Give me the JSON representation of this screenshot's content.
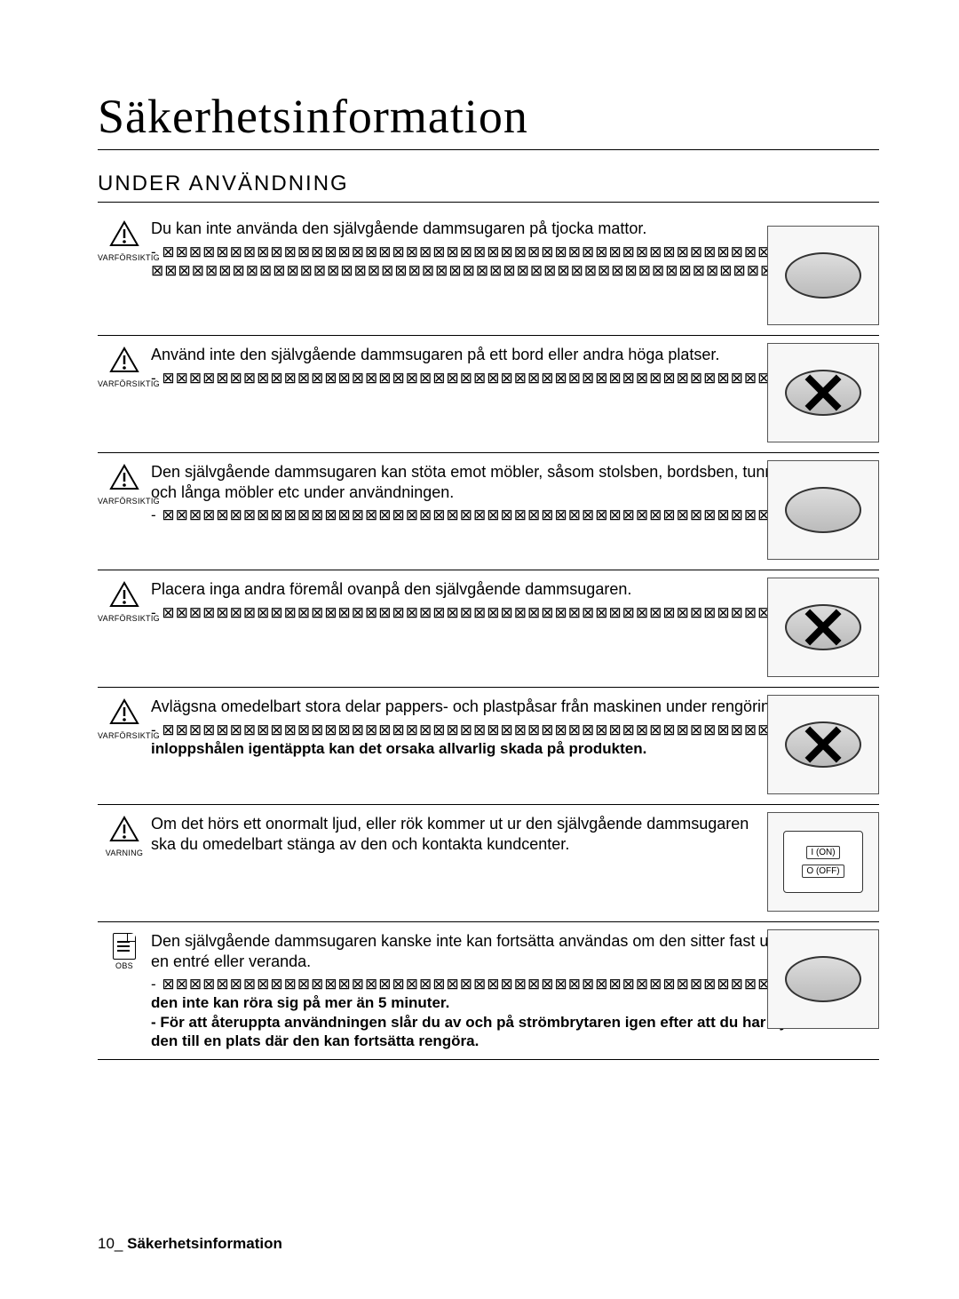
{
  "title": "Säkerhetsinformation",
  "section": "UNDER ANVÄNDNING",
  "labels": {
    "caution": "VARFÖRSIKTIG",
    "warning": "VARNING",
    "note": "OBS"
  },
  "items": [
    {
      "iconType": "caution",
      "main": "Du kan inte använda den självgående dammsugaren på tjocka mattor.",
      "detail_garbled": true,
      "thumb": "robot"
    },
    {
      "iconType": "caution",
      "main": "Använd inte den självgående dammsugaren på ett bord eller andra höga platser.",
      "detail_garbled": true,
      "thumb": "robot-cross"
    },
    {
      "iconType": "caution",
      "main": "Den självgående dammsugaren kan stöta emot möbler, såsom stolsben, bordsben, tunna och långa möbler etc under användningen.",
      "detail_garbled": true,
      "thumb": "robot"
    },
    {
      "iconType": "caution",
      "main": "Placera inga andra föremål ovanpå den självgående dammsugaren.",
      "detail_garbled": true,
      "thumb": "robot-cross"
    },
    {
      "iconType": "caution",
      "main": "Avlägsna omedelbart stora delar pappers- och plastpåsar från maskinen under rengöringen.",
      "detail_bold": "inloppshålen igentäppta kan det orsaka allvarlig skada på produkten.",
      "thumb": "robot-cross"
    },
    {
      "iconType": "warning",
      "main": "Om det hörs ett onormalt ljud, eller rök kommer ut ur den självgående dammsugaren ska du omedelbart stänga av den och kontakta kundcenter.",
      "thumb": "switch",
      "switch_on": "I (ON)",
      "switch_off": "O (OFF)"
    },
    {
      "iconType": "note",
      "main": "Den självgående dammsugaren kanske inte kan fortsätta användas om den sitter fast under en entré eller veranda.",
      "bold_lines": [
        "den inte kan röra sig på mer än 5 minuter.",
        "- För att återuppta användningen slår du av och på strömbrytaren igen efter att du har flyttat den till en plats där den kan fortsätta rengöra."
      ],
      "thumb": "robot"
    }
  ],
  "footer": {
    "page": "10_",
    "title": "Säkerhetsinformation"
  }
}
